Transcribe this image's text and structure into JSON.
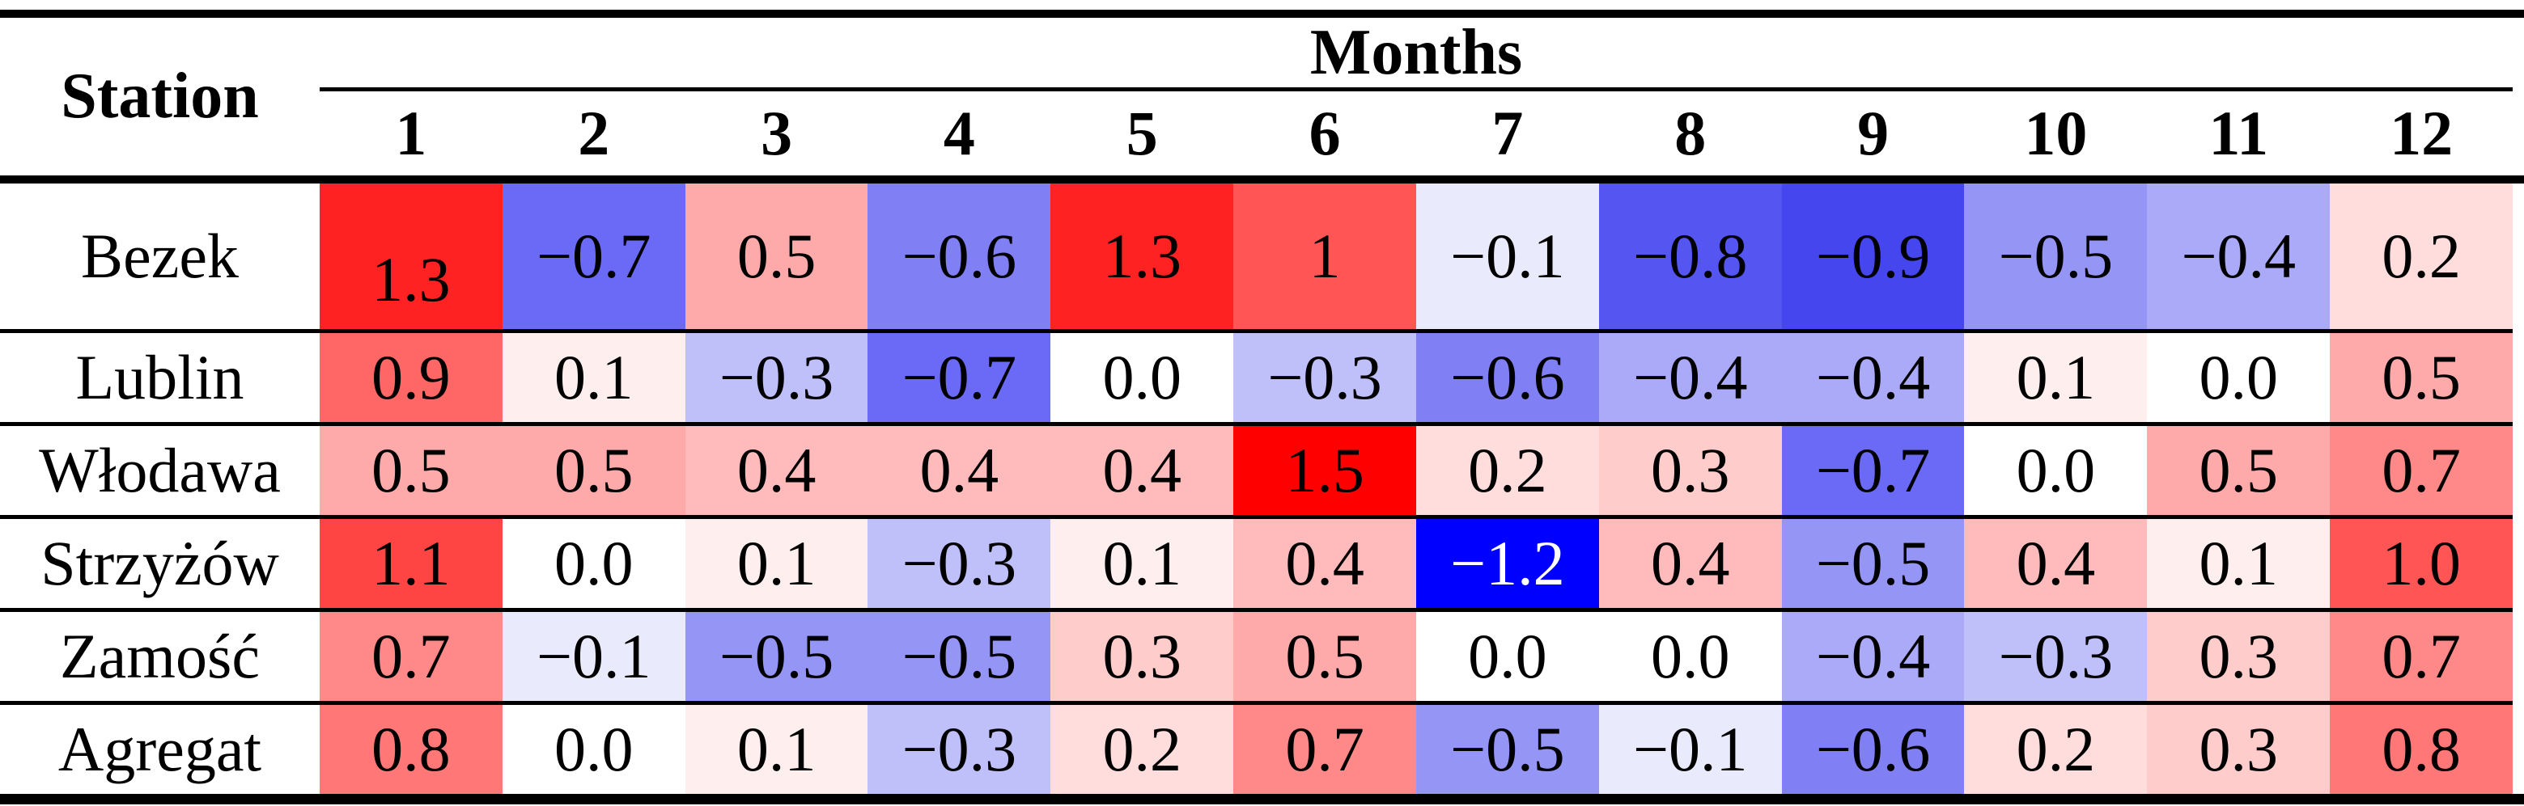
{
  "table": {
    "station_header": "Station",
    "months_header": "Months",
    "month_columns": [
      "1",
      "2",
      "3",
      "4",
      "5",
      "6",
      "7",
      "8",
      "9",
      "10",
      "11",
      "12"
    ],
    "rows": [
      {
        "station": "Bezek",
        "cells": [
          {
            "v": "1.3",
            "bg": "#ff2222"
          },
          {
            "v": "−0.7",
            "bg": "#6a6af7"
          },
          {
            "v": "0.5",
            "bg": "#ffaaaa"
          },
          {
            "v": "−0.6",
            "bg": "#8080f4"
          },
          {
            "v": "1.3",
            "bg": "#ff2222"
          },
          {
            "v": "1",
            "bg": "#ff5555"
          },
          {
            "v": "−0.1",
            "bg": "#eaeafd"
          },
          {
            "v": "−0.8",
            "bg": "#5555f1"
          },
          {
            "v": "−0.9",
            "bg": "#4646ef"
          },
          {
            "v": "−0.5",
            "bg": "#9595f6"
          },
          {
            "v": "−0.4",
            "bg": "#aaaaf8"
          },
          {
            "v": "0.2",
            "bg": "#ffdddd"
          }
        ]
      },
      {
        "station": "Lublin",
        "cells": [
          {
            "v": "0.9",
            "bg": "#ff6666"
          },
          {
            "v": "0.1",
            "bg": "#ffeeee"
          },
          {
            "v": "−0.3",
            "bg": "#bfbffa"
          },
          {
            "v": "−0.7",
            "bg": "#6a6af7"
          },
          {
            "v": "0.0",
            "bg": "#ffffff"
          },
          {
            "v": "−0.3",
            "bg": "#bfbffa"
          },
          {
            "v": "−0.6",
            "bg": "#8080f4"
          },
          {
            "v": "−0.4",
            "bg": "#aaaaf8"
          },
          {
            "v": "−0.4",
            "bg": "#aaaaf8"
          },
          {
            "v": "0.1",
            "bg": "#ffeeee"
          },
          {
            "v": "0.0",
            "bg": "#ffffff"
          },
          {
            "v": "0.5",
            "bg": "#ffaaaa"
          }
        ]
      },
      {
        "station": "Włodawa",
        "cells": [
          {
            "v": "0.5",
            "bg": "#ffaaaa"
          },
          {
            "v": "0.5",
            "bg": "#ffaaaa"
          },
          {
            "v": "0.4",
            "bg": "#ffbbbb"
          },
          {
            "v": "0.4",
            "bg": "#ffbbbb"
          },
          {
            "v": "0.4",
            "bg": "#ffbbbb"
          },
          {
            "v": "1.5",
            "bg": "#ff0000"
          },
          {
            "v": "0.2",
            "bg": "#ffdddd"
          },
          {
            "v": "0.3",
            "bg": "#ffcccc"
          },
          {
            "v": "−0.7",
            "bg": "#6a6af7"
          },
          {
            "v": "0.0",
            "bg": "#ffffff"
          },
          {
            "v": "0.5",
            "bg": "#ffaaaa"
          },
          {
            "v": "0.7",
            "bg": "#ff8888"
          }
        ]
      },
      {
        "station": "Strzyżów",
        "cells": [
          {
            "v": "1.1",
            "bg": "#ff4444"
          },
          {
            "v": "0.0",
            "bg": "#ffffff"
          },
          {
            "v": "0.1",
            "bg": "#ffeeee"
          },
          {
            "v": "−0.3",
            "bg": "#bfbffa"
          },
          {
            "v": "0.1",
            "bg": "#ffeeee"
          },
          {
            "v": "0.4",
            "bg": "#ffbbbb"
          },
          {
            "v": "−1.2",
            "bg": "#0000ff",
            "fg": "#ffffff"
          },
          {
            "v": "0.4",
            "bg": "#ffbbbb"
          },
          {
            "v": "−0.5",
            "bg": "#9595f6"
          },
          {
            "v": "0.4",
            "bg": "#ffbbbb"
          },
          {
            "v": "0.1",
            "bg": "#ffeeee"
          },
          {
            "v": "1.0",
            "bg": "#ff5555"
          }
        ]
      },
      {
        "station": "Zamość",
        "cells": [
          {
            "v": "0.7",
            "bg": "#ff8888"
          },
          {
            "v": "−0.1",
            "bg": "#eaeafd"
          },
          {
            "v": "−0.5",
            "bg": "#9595f6"
          },
          {
            "v": "−0.5",
            "bg": "#9595f6"
          },
          {
            "v": "0.3",
            "bg": "#ffcccc"
          },
          {
            "v": "0.5",
            "bg": "#ffaaaa"
          },
          {
            "v": "0.0",
            "bg": "#ffffff"
          },
          {
            "v": "0.0",
            "bg": "#ffffff"
          },
          {
            "v": "−0.4",
            "bg": "#aaaaf8"
          },
          {
            "v": "−0.3",
            "bg": "#bfbffa"
          },
          {
            "v": "0.3",
            "bg": "#ffcccc"
          },
          {
            "v": "0.7",
            "bg": "#ff8888"
          }
        ]
      },
      {
        "station": "Agregat",
        "cells": [
          {
            "v": "0.8",
            "bg": "#ff7777"
          },
          {
            "v": "0.0",
            "bg": "#ffffff"
          },
          {
            "v": "0.1",
            "bg": "#ffeeee"
          },
          {
            "v": "−0.3",
            "bg": "#bfbffa"
          },
          {
            "v": "0.2",
            "bg": "#ffdddd"
          },
          {
            "v": "0.7",
            "bg": "#ff8888"
          },
          {
            "v": "−0.5",
            "bg": "#9595f6"
          },
          {
            "v": "−0.1",
            "bg": "#eaeafd"
          },
          {
            "v": "−0.6",
            "bg": "#8080f4"
          },
          {
            "v": "0.2",
            "bg": "#ffdddd"
          },
          {
            "v": "0.3",
            "bg": "#ffcccc"
          },
          {
            "v": "0.8",
            "bg": "#ff7777"
          }
        ]
      }
    ]
  },
  "chart_data": {
    "type": "heatmap",
    "row_header": "Station",
    "column_group_header": "Months",
    "columns": [
      1,
      2,
      3,
      4,
      5,
      6,
      7,
      8,
      9,
      10,
      11,
      12
    ],
    "rows": [
      "Bezek",
      "Lublin",
      "Włodawa",
      "Strzyżów",
      "Zamość",
      "Agregat"
    ],
    "values": [
      [
        1.3,
        -0.7,
        0.5,
        -0.6,
        1.3,
        1,
        -0.1,
        -0.8,
        -0.9,
        -0.5,
        -0.4,
        0.2
      ],
      [
        0.9,
        0.1,
        -0.3,
        -0.7,
        0.0,
        -0.3,
        -0.6,
        -0.4,
        -0.4,
        0.1,
        0.0,
        0.5
      ],
      [
        0.5,
        0.5,
        0.4,
        0.4,
        0.4,
        1.5,
        0.2,
        0.3,
        -0.7,
        0.0,
        0.5,
        0.7
      ],
      [
        1.1,
        0.0,
        0.1,
        -0.3,
        0.1,
        0.4,
        -1.2,
        0.4,
        -0.5,
        0.4,
        0.1,
        1.0
      ],
      [
        0.7,
        -0.1,
        -0.5,
        -0.5,
        0.3,
        0.5,
        0.0,
        0.0,
        -0.4,
        -0.3,
        0.3,
        0.7
      ],
      [
        0.8,
        0.0,
        0.1,
        -0.3,
        0.2,
        0.7,
        -0.5,
        -0.1,
        -0.6,
        0.2,
        0.3,
        0.8
      ]
    ],
    "value_range": [
      -1.2,
      1.5
    ],
    "colormap": {
      "zero": "#ffffff",
      "positive_max": "#ff0000",
      "negative_max": "#0000ff",
      "description": "diverging red (positive) / blue (negative), white at zero"
    },
    "legend_position": "none",
    "grid": "black rules between rows, thick rules at top, below header and bottom"
  },
  "colors": {
    "text": "#000000",
    "inverse_text": "#ffffff",
    "rule": "#000000",
    "background": "#ffffff"
  }
}
